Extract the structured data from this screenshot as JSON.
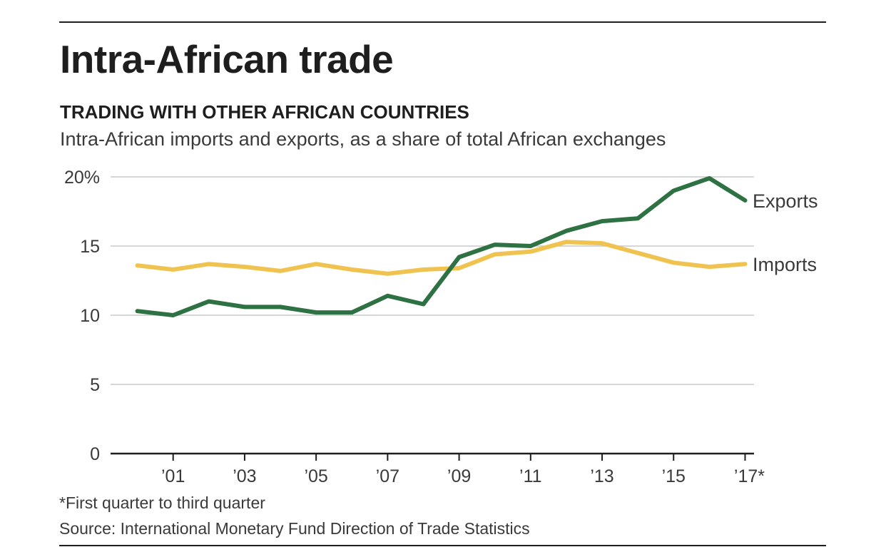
{
  "header": {
    "title": "Intra-African trade",
    "subtitle": "TRADING WITH OTHER AFRICAN COUNTRIES",
    "description": "Intra-African imports and exports, as a share of total African exchanges"
  },
  "footer": {
    "footnote": "*First quarter to third quarter",
    "source": "Source: International Monetary Fund Direction of Trade Statistics"
  },
  "colors": {
    "exports": "#2e7142",
    "imports": "#f0c24f",
    "grid": "#c8c8c8",
    "axis": "#1e1e1e"
  },
  "chart_data": {
    "type": "line",
    "title": "TRADING WITH OTHER AFRICAN COUNTRIES",
    "subtitle": "Intra-African imports and exports, as a share of total African exchanges",
    "xlabel": "",
    "ylabel": "",
    "x": [
      2000,
      2001,
      2002,
      2003,
      2004,
      2005,
      2006,
      2007,
      2008,
      2009,
      2010,
      2011,
      2012,
      2013,
      2014,
      2015,
      2016,
      2017
    ],
    "xlim": [
      1999.25,
      2017.25
    ],
    "ylim": [
      0,
      20
    ],
    "yticks": [
      0,
      5,
      10,
      15,
      20
    ],
    "ytick_labels": [
      "0",
      "5",
      "10",
      "15",
      "20%"
    ],
    "xticks": [
      2001,
      2003,
      2005,
      2007,
      2009,
      2011,
      2013,
      2015,
      2017
    ],
    "xtick_labels": [
      "’01",
      "’03",
      "’05",
      "’07",
      "’09",
      "’11",
      "’13",
      "’15",
      "’17*"
    ],
    "grid": true,
    "legend": "inline labels at line ends",
    "series": [
      {
        "name": "Exports",
        "color": "#2e7142",
        "values": [
          10.3,
          10.0,
          11.0,
          10.6,
          10.6,
          10.2,
          10.2,
          11.4,
          10.8,
          14.2,
          15.1,
          15.0,
          16.1,
          16.8,
          17.0,
          19.0,
          19.9,
          18.3
        ]
      },
      {
        "name": "Imports",
        "color": "#f0c24f",
        "values": [
          13.6,
          13.3,
          13.7,
          13.5,
          13.2,
          13.7,
          13.3,
          13.0,
          13.3,
          13.4,
          14.4,
          14.6,
          15.3,
          15.2,
          14.5,
          13.8,
          13.5,
          13.7
        ]
      }
    ]
  }
}
